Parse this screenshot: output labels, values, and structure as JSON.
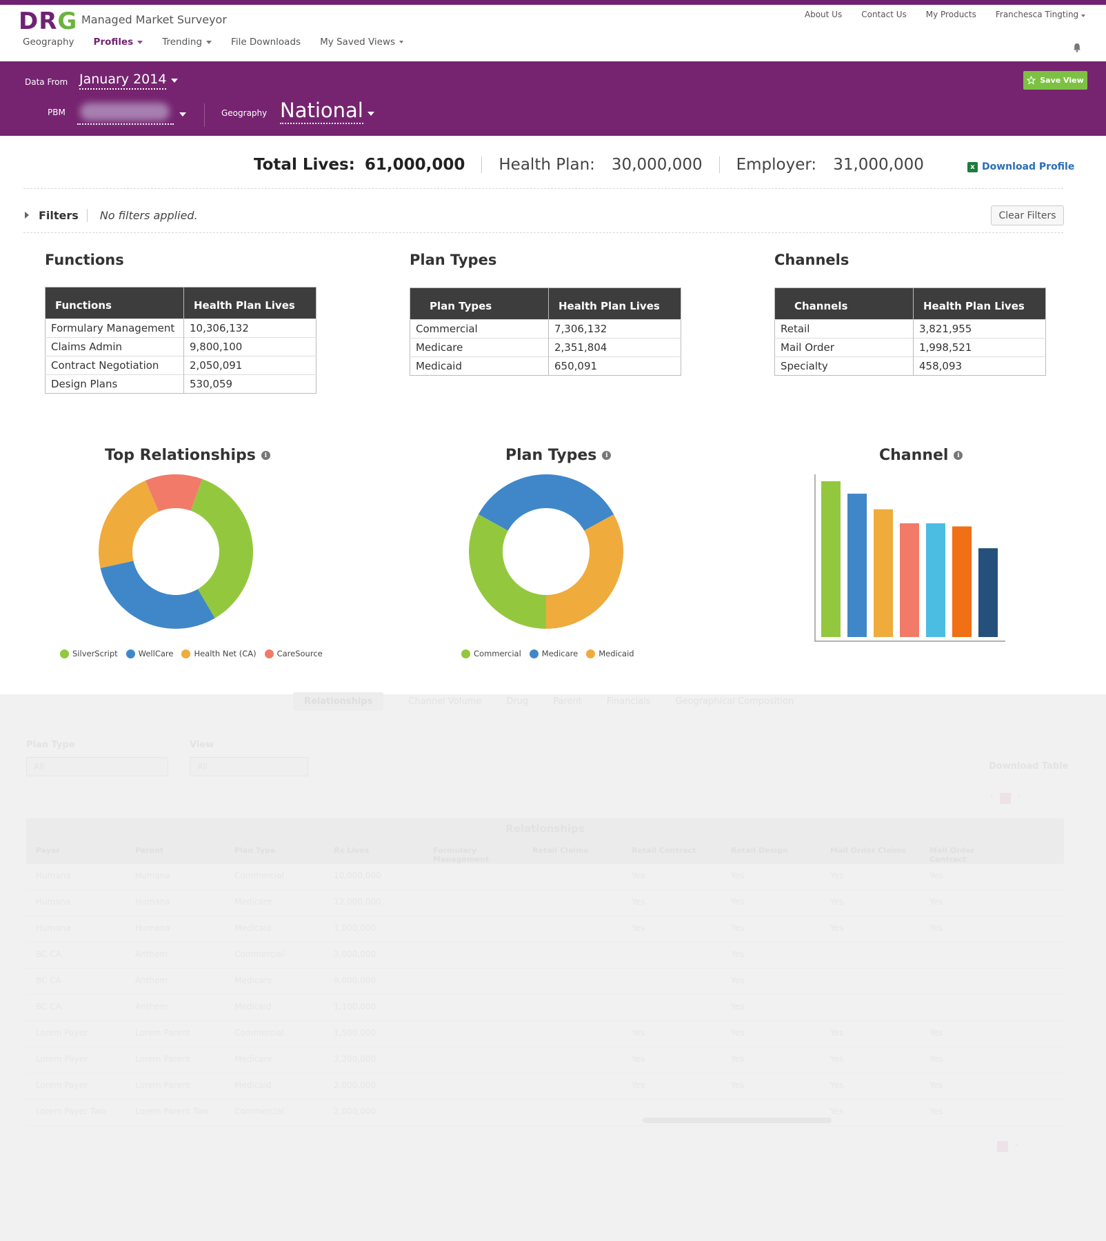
{
  "header": {
    "logo": "DRG",
    "app_title": "Managed Market Surveyor",
    "util_nav": [
      "About Us",
      "Contact Us",
      "My Products",
      "Franchesca Tingting"
    ],
    "main_nav": [
      {
        "label": "Geography",
        "active": false,
        "has_menu": false
      },
      {
        "label": "Profiles",
        "active": true,
        "has_menu": true
      },
      {
        "label": "Trending",
        "active": false,
        "has_menu": true
      },
      {
        "label": "File Downloads",
        "active": false,
        "has_menu": false
      },
      {
        "label": "My Saved Views",
        "active": false,
        "has_menu": true
      }
    ],
    "bell_icon": "bell-icon"
  },
  "filters_band": {
    "data_from_label": "Data From",
    "data_from_value": "January 2014",
    "pbm_label": "PBM",
    "geography_label": "Geography",
    "geography_value": "National",
    "save_view_label": "Save View"
  },
  "totals": {
    "total_lives_label": "Total Lives:",
    "total_lives_value": "61,000,000",
    "health_plan_label": "Health Plan:",
    "health_plan_value": "30,000,000",
    "employer_label": "Employer:",
    "employer_value": "31,000,000",
    "download_label": "Download Profile"
  },
  "filters": {
    "label": "Filters",
    "status": "No filters applied.",
    "clear_label": "Clear Filters"
  },
  "tables": [
    {
      "title": "Functions",
      "headers": [
        "Functions",
        "Health Plan Lives"
      ],
      "rows": [
        [
          "Formulary Management",
          "10,306,132"
        ],
        [
          "Claims Admin",
          "9,800,100"
        ],
        [
          "Contract Negotiation",
          "2,050,091"
        ],
        [
          "Design Plans",
          "530,059"
        ]
      ]
    },
    {
      "title": "Plan Types",
      "headers": [
        "Plan Types",
        "Health Plan Lives"
      ],
      "rows": [
        [
          "Commercial",
          "7,306,132"
        ],
        [
          "Medicare",
          "2,351,804"
        ],
        [
          "Medicaid",
          "650,091"
        ]
      ]
    },
    {
      "title": "Channels",
      "headers": [
        "Channels",
        "Health Plan Lives"
      ],
      "rows": [
        [
          "Retail",
          "3,821,955"
        ],
        [
          "Mail Order",
          "1,998,521"
        ],
        [
          "Specialty",
          "458,093"
        ]
      ]
    }
  ],
  "chart_data": [
    {
      "type": "pie",
      "title": "Top Relationships",
      "donut": true,
      "categories": [
        "SilverScript",
        "WellCare",
        "Health Net (CA)",
        "CareSource"
      ],
      "values": [
        36,
        30,
        22,
        12
      ],
      "colors": [
        "#93c83e",
        "#3f87c9",
        "#f0ab3d",
        "#f17b68"
      ],
      "legend": "bottom"
    },
    {
      "type": "pie",
      "title": "Plan Types",
      "donut": true,
      "categories": [
        "Commercial",
        "Medicare",
        "Medicaid"
      ],
      "values": [
        33,
        34,
        33
      ],
      "colors": [
        "#93c83e",
        "#3f87c9",
        "#f0ab3d"
      ],
      "legend": "bottom"
    },
    {
      "type": "bar",
      "title": "Channel",
      "values": [
        100,
        92,
        82,
        73,
        73,
        71,
        57
      ],
      "colors": [
        "#93c83e",
        "#3f87c9",
        "#f0ab3d",
        "#f17b68",
        "#4bbde3",
        "#f16f15",
        "#26507c"
      ],
      "ylim": [
        0,
        100
      ],
      "grid": false
    }
  ],
  "lower_panel": {
    "tabs": [
      "Relationships",
      "Channel Volume",
      "Drug",
      "Parent",
      "Financials",
      "Geographical Composition"
    ],
    "plan_type_label": "Plan Type",
    "plan_type_value": "All",
    "view_label": "View",
    "view_value": "All",
    "download_table_label": "Download Table",
    "table_caption": "Relationships",
    "columns": [
      "Payer",
      "Parent",
      "Plan Type",
      "Rx Lives",
      "Formulary Management",
      "Retail Claims",
      "Retail Contract",
      "Retail Design",
      "Mail Order Claims",
      "Mail Order Contract"
    ],
    "rows": [
      [
        "Humana",
        "Humana",
        "Commercial",
        "10,000,000",
        "",
        "",
        "Yes",
        "Yes",
        "Yes",
        "Yes"
      ],
      [
        "Humana",
        "Humana",
        "Medicare",
        "12,000,000",
        "",
        "",
        "Yes",
        "Yes",
        "Yes",
        "Yes"
      ],
      [
        "Humana",
        "Humana",
        "Medicaid",
        "1,000,000",
        "",
        "",
        "Yes",
        "Yes",
        "Yes",
        "Yes"
      ],
      [
        "BC CA",
        "Anthem",
        "Commercial",
        "3,000,000",
        "",
        "",
        "",
        "Yes",
        "",
        ""
      ],
      [
        "BC CA",
        "Anthem",
        "Medicare",
        "9,000,000",
        "",
        "",
        "",
        "Yes",
        "",
        ""
      ],
      [
        "BC CA",
        "Anthem",
        "Medicaid",
        "1,100,000",
        "",
        "",
        "",
        "Yes",
        "",
        ""
      ],
      [
        "Lorem Payer",
        "Lorem Parent",
        "Commercial",
        "1,500,000",
        "",
        "",
        "Yes",
        "Yes",
        "Yes",
        "Yes"
      ],
      [
        "Lorem Payer",
        "Lorem Parent",
        "Medicare",
        "3,200,000",
        "",
        "",
        "Yes",
        "Yes",
        "Yes",
        "Yes"
      ],
      [
        "Lorem Payer",
        "Lorem Parent",
        "Medicaid",
        "2,000,000",
        "",
        "",
        "Yes",
        "Yes",
        "Yes",
        "Yes"
      ],
      [
        "Lorem Payer Two",
        "Lorem Parent Two",
        "Commercial",
        "2,000,000",
        "",
        "",
        "",
        "",
        "Yes",
        "Yes"
      ]
    ]
  }
}
